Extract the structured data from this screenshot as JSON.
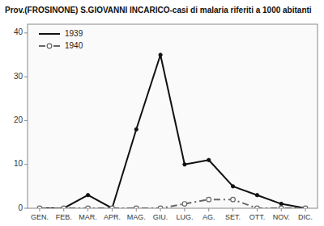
{
  "chart_data": {
    "type": "line",
    "title": "Prov.(FROSINONE) S.GIOVANNI INCARICO-casi di malaria riferiti a 1000 abitanti",
    "categories": [
      "GEN.",
      "FEB.",
      "MAR.",
      "APR.",
      "MAG.",
      "GIU.",
      "LUG.",
      "AG.",
      "SET.",
      "OTT.",
      "NOV.",
      "DIC."
    ],
    "series": [
      {
        "name": "1939",
        "color": "#111111",
        "line_style": "solid",
        "marker": "circle",
        "values": [
          0,
          0,
          3,
          0,
          18,
          35,
          10,
          11,
          5,
          3,
          1,
          0
        ]
      },
      {
        "name": "1940",
        "color": "#666666",
        "line_style": "dashdot",
        "marker": "circle",
        "values": [
          0,
          0,
          0,
          0,
          0,
          0,
          1,
          2,
          2,
          0,
          0,
          0
        ]
      }
    ],
    "ylim": [
      0,
      42
    ],
    "yticks": [
      0,
      10,
      20,
      30,
      40
    ],
    "grid": false,
    "legend": "upper left"
  }
}
